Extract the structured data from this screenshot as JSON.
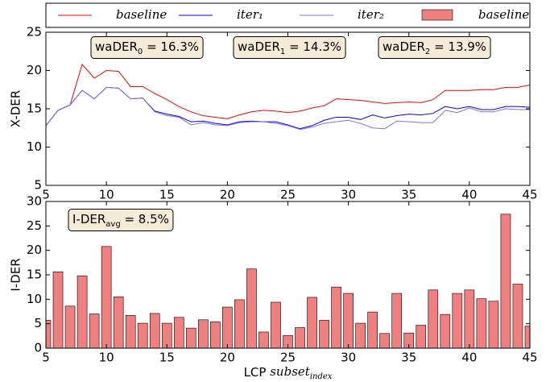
{
  "chart_data": [
    {
      "type": "line",
      "y_label": "X-DER",
      "x": [
        5,
        6,
        7,
        8,
        9,
        10,
        11,
        12,
        13,
        14,
        15,
        16,
        17,
        18,
        19,
        20,
        21,
        22,
        23,
        24,
        25,
        26,
        27,
        28,
        29,
        30,
        31,
        32,
        33,
        34,
        35,
        36,
        37,
        38,
        39,
        40,
        41,
        42,
        43,
        44,
        45
      ],
      "series": [
        {
          "name": "baseline",
          "color": "#ff0000",
          "values": [
            12.8,
            14.8,
            15.5,
            20.8,
            19,
            20,
            19.9,
            17.9,
            17.9,
            17,
            16.2,
            15.3,
            14.6,
            14.1,
            13.9,
            13.7,
            14.2,
            14.6,
            14.8,
            14.7,
            14.5,
            14.7,
            15.1,
            15.4,
            16.3,
            16.2,
            16.1,
            15.9,
            15.7,
            15.8,
            15.9,
            15.8,
            16.2,
            17.4,
            17.4,
            17.4,
            17.5,
            17.5,
            17.8,
            17.8,
            18.1
          ]
        },
        {
          "name": "iter₁",
          "color": "#0000ff",
          "values": [
            12.8,
            14.8,
            15.5,
            17.4,
            16.3,
            17.8,
            17.7,
            16.3,
            16.4,
            14.7,
            14.3,
            14,
            13.3,
            13.4,
            13.1,
            12.9,
            13.3,
            13.4,
            13.3,
            13.3,
            12.9,
            12.4,
            12.8,
            13.5,
            13.9,
            13.9,
            13.6,
            14.2,
            13.8,
            14.1,
            14.3,
            14.2,
            14.4,
            15.3,
            15,
            15.3,
            14.9,
            14.9,
            15.3,
            15.3,
            15.2
          ]
        },
        {
          "name": "iter₂",
          "color": "#8a6cf0",
          "values": [
            12.8,
            14.8,
            15.5,
            17.4,
            16.3,
            17.8,
            17.7,
            16.3,
            16.4,
            14.6,
            14.1,
            13.9,
            12.9,
            13.2,
            12.9,
            12.8,
            13.2,
            13.3,
            13.3,
            13.1,
            12.8,
            12.3,
            12.6,
            13.1,
            13.3,
            13.5,
            13.1,
            12.5,
            12.4,
            13.4,
            13.3,
            13.2,
            13.2,
            14.8,
            14.5,
            15.1,
            14.6,
            14.6,
            15,
            14.9,
            14.9
          ]
        }
      ],
      "xlim": [
        5,
        45
      ],
      "xticks": [
        5,
        10,
        15,
        20,
        25,
        30,
        35,
        40,
        45
      ],
      "ylim": [
        5,
        25
      ],
      "yticks": [
        5,
        10,
        15,
        20,
        25
      ],
      "annotations": [
        {
          "text": "waDER",
          "sub": "0",
          "rest": " = 16.3%"
        },
        {
          "text": "waDER",
          "sub": "1",
          "rest": " = 14.3%"
        },
        {
          "text": "waDER",
          "sub": "2",
          "rest": " = 13.9%"
        }
      ]
    },
    {
      "type": "bar",
      "y_label": "I-DER",
      "x": [
        5,
        6,
        7,
        8,
        9,
        10,
        11,
        12,
        13,
        14,
        15,
        16,
        17,
        18,
        19,
        20,
        21,
        22,
        23,
        24,
        25,
        26,
        27,
        28,
        29,
        30,
        31,
        32,
        33,
        34,
        35,
        36,
        37,
        38,
        39,
        40,
        41,
        42,
        43,
        44,
        45
      ],
      "series": [
        {
          "name": "baseline",
          "color": "#f08080",
          "values": [
            5.7,
            15.6,
            8.6,
            14.8,
            7,
            20.8,
            10.5,
            6.7,
            5.1,
            7.1,
            5.1,
            6.3,
            4.1,
            5.8,
            5.4,
            8.4,
            9.9,
            16.2,
            3.3,
            9.4,
            2.6,
            4.2,
            10.4,
            5.7,
            12.5,
            11.2,
            5.1,
            7.4,
            3,
            11.2,
            3.1,
            4.7,
            11.9,
            6.9,
            11.2,
            11.9,
            10.1,
            9.6,
            27.4,
            13.1,
            4.5
          ]
        }
      ],
      "xlim": [
        5,
        45
      ],
      "xticks": [
        5,
        10,
        15,
        20,
        25,
        30,
        35,
        40,
        45
      ],
      "ylim": [
        0,
        30
      ],
      "yticks": [
        0,
        5,
        10,
        15,
        20,
        25,
        30
      ],
      "x_label": {
        "text": "LCP ",
        "var": "subset",
        "sub": "index"
      },
      "annotations": [
        {
          "text": "I-DER",
          "sub": "avg",
          "rest": " = 8.5%"
        }
      ]
    }
  ]
}
